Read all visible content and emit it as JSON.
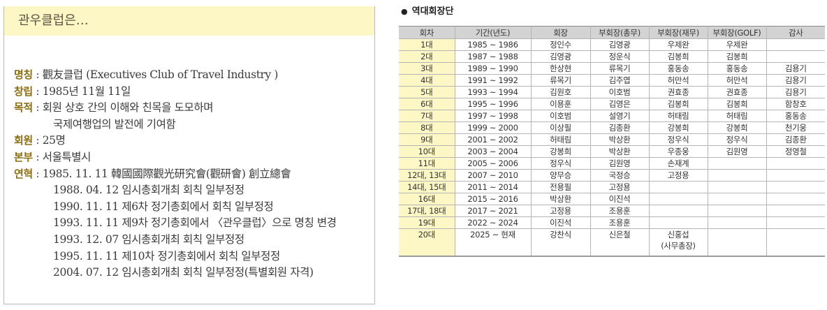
{
  "left_panel": {
    "title": "관우클럽은…",
    "items": [
      {
        "label": "명칭",
        "sep": " : ",
        "value": "觀友클럽 (Executives Club of Travel Industry )"
      },
      {
        "label": "창립",
        "sep": " : ",
        "value": "1985년 11월 11일"
      },
      {
        "label": "목적",
        "sep": " : ",
        "value": "회원 상호 간의 이해와 친목을 도모하며",
        "continuation": "국제여행업의 발전에 기여함"
      },
      {
        "label": "회원",
        "sep": " : ",
        "value": "25명"
      },
      {
        "label": "본부",
        "sep": " : ",
        "value": "서울특별시"
      },
      {
        "label": "연혁",
        "sep": " : ",
        "value": "1985. 11. 11 韓國國際觀光研究會(觀研會) 創立總會"
      }
    ],
    "history_continued": [
      "1988. 04. 12 임시총회개최 회칙 일부정정",
      "1990. 11. 11 제6차 정기총회에서 회칙 일부정정",
      "1993. 11. 11 제9차 정기총회에서 〈관우클럽〉으로 명칭 변경",
      "1993. 12. 07 임시총회개최 회칙 일부정정",
      "1995. 11. 11 제10차 정기총회에서 회칙 일부정정",
      "2004. 07. 12 임시총회개최 회칙 일부정정(특별회원 자격)"
    ]
  },
  "right_panel": {
    "bullet": "●",
    "title": "역대회장단",
    "columns": [
      "회차",
      "기간(년도)",
      "회장",
      "부회장(총무)",
      "부회장(재무)",
      "부회장(GOLF)",
      "감사"
    ],
    "rows": [
      [
        "1대",
        "1985 ~ 1986",
        "정인수",
        "김영광",
        "우제완",
        "우제완",
        ""
      ],
      [
        "2대",
        "1987 ~ 1988",
        "김영광",
        "정운식",
        "김봉희",
        "김봉희",
        ""
      ],
      [
        "3대",
        "1989 ~ 1990",
        "한상현",
        "류목기",
        "홍동송",
        "홍동송",
        "김용기"
      ],
      [
        "4대",
        "1991 ~ 1992",
        "류목기",
        "김주엽",
        "허만석",
        "허만석",
        "김용기"
      ],
      [
        "5대",
        "1993 ~ 1994",
        "김원호",
        "이호범",
        "권효종",
        "권효종",
        "김용기"
      ],
      [
        "6대",
        "1995 ~ 1996",
        "이용훈",
        "김영은",
        "김봉희",
        "김봉희",
        "함창호"
      ],
      [
        "7대",
        "1997 ~ 1998",
        "이호범",
        "설영기",
        "허태림",
        "허태림",
        "홍동송"
      ],
      [
        "8대",
        "1999 ~ 2000",
        "이상필",
        "김종환",
        "강봉희",
        "강봉희",
        "천기웅"
      ],
      [
        "9대",
        "2001 ~ 2002",
        "허태림",
        "박상환",
        "정우식",
        "정우식",
        "김종환"
      ],
      [
        "10대",
        "2003 ~ 2004",
        "강봉희",
        "박상환",
        "우종웅",
        "김원영",
        "정영철"
      ],
      [
        "11대",
        "2005 ~ 2006",
        "정우식",
        "김원영",
        "손재계",
        "",
        ""
      ],
      [
        "12대, 13대",
        "2007 ~ 2010",
        "양무승",
        "국정승",
        "고정용",
        "",
        ""
      ],
      [
        "14대, 15대",
        "2011 ~ 2014",
        "전용필",
        "고정용",
        "",
        "",
        ""
      ],
      [
        "16대",
        "2015 ~ 2016",
        "박상환",
        "이진석",
        "",
        "",
        ""
      ],
      [
        "17대, 18대",
        "2017 ~ 2021",
        "고정용",
        "조용훈",
        "",
        "",
        ""
      ],
      [
        "19대",
        "2022 ~ 2024",
        "이진석",
        "조용훈",
        "",
        "",
        ""
      ],
      [
        "20대",
        "2025 ~ 현재",
        "강찬식",
        "신은철",
        "신홍섭\n(사무총장)",
        "",
        ""
      ]
    ]
  },
  "colors": {
    "header_band": "#fdf7c6",
    "label_gold": "#8a6d10",
    "table_header_bg": "#d3d3d3",
    "generation_cell_bg": "#fdf7c6",
    "border": "#b5b5b5"
  }
}
